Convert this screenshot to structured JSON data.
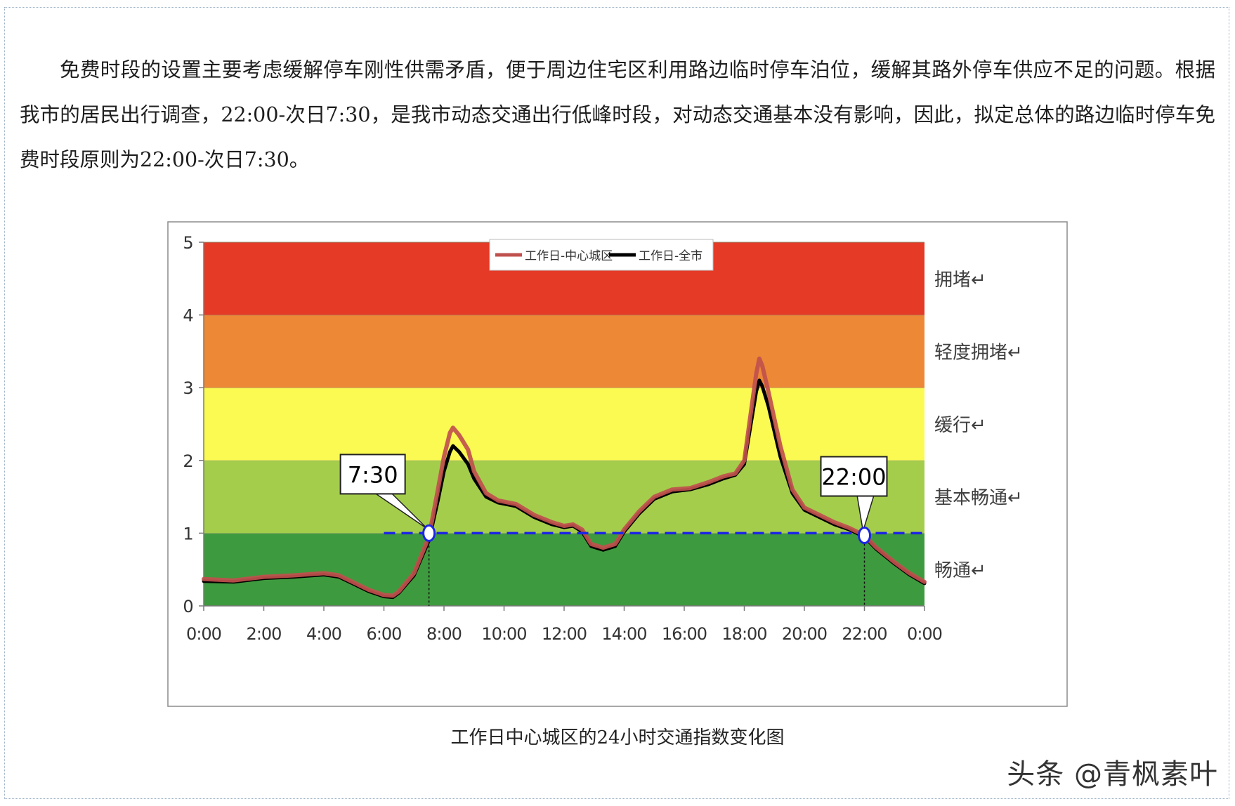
{
  "article": {
    "paragraph": "免费时段的设置主要考虑缓解停车刚性供需矛盾，便于周边住宅区利用路边临时停车泊位，缓解其路外停车供应不足的问题。根据我市的居民出行调查，22:00-次日7:30，是我市动态交通出行低峰时段，对动态交通基本没有影响，因此，拟定总体的路边临时停车免费时段原则为22:00-次日7:30。",
    "caption": "工作日中心城区的24小时交通指数变化图",
    "watermark": "头条 @青枫素叶"
  },
  "chart_data": {
    "type": "line",
    "title": "",
    "xlabel": "",
    "ylabel": "",
    "xlim": [
      0,
      24
    ],
    "ylim": [
      0,
      5
    ],
    "x_ticks": [
      "0:00",
      "2:00",
      "4:00",
      "6:00",
      "8:00",
      "10:00",
      "12:00",
      "14:00",
      "16:00",
      "18:00",
      "20:00",
      "22:00",
      "0:00"
    ],
    "y_ticks": [
      "0",
      "1",
      "2",
      "3",
      "4",
      "5"
    ],
    "legend_position": "top",
    "bands": [
      {
        "label": "畅通",
        "from": 0,
        "to": 1,
        "color": "#3e9a3e"
      },
      {
        "label": "基本畅通",
        "from": 1,
        "to": 2,
        "color": "#a4cd4c"
      },
      {
        "label": "缓行",
        "from": 2,
        "to": 3,
        "color": "#fafa52"
      },
      {
        "label": "轻度拥堵",
        "from": 3,
        "to": 4,
        "color": "#ed8836"
      },
      {
        "label": "拥堵",
        "from": 4,
        "to": 5,
        "color": "#e53a26"
      }
    ],
    "band_label_suffix": "↵",
    "reference_line": {
      "y": 1,
      "from": 6,
      "to": 24,
      "color": "#1c25e6"
    },
    "series": [
      {
        "name": "工作日-中心城区",
        "color": "#c0504d",
        "points": [
          [
            0,
            0.37
          ],
          [
            1,
            0.35
          ],
          [
            2,
            0.4
          ],
          [
            3,
            0.42
          ],
          [
            4,
            0.45
          ],
          [
            4.5,
            0.42
          ],
          [
            5,
            0.32
          ],
          [
            5.5,
            0.22
          ],
          [
            6,
            0.15
          ],
          [
            6.3,
            0.14
          ],
          [
            6.5,
            0.2
          ],
          [
            7,
            0.45
          ],
          [
            7.5,
            0.95
          ],
          [
            7.8,
            1.6
          ],
          [
            8,
            2.05
          ],
          [
            8.2,
            2.38
          ],
          [
            8.3,
            2.45
          ],
          [
            8.5,
            2.35
          ],
          [
            8.8,
            2.15
          ],
          [
            9,
            1.85
          ],
          [
            9.4,
            1.55
          ],
          [
            9.8,
            1.45
          ],
          [
            10.4,
            1.4
          ],
          [
            11,
            1.25
          ],
          [
            11.6,
            1.15
          ],
          [
            12,
            1.1
          ],
          [
            12.3,
            1.12
          ],
          [
            12.6,
            1.05
          ],
          [
            12.9,
            0.85
          ],
          [
            13.3,
            0.8
          ],
          [
            13.7,
            0.85
          ],
          [
            14,
            1.05
          ],
          [
            14.5,
            1.3
          ],
          [
            15,
            1.5
          ],
          [
            15.6,
            1.6
          ],
          [
            16.2,
            1.62
          ],
          [
            16.8,
            1.7
          ],
          [
            17.3,
            1.78
          ],
          [
            17.7,
            1.82
          ],
          [
            18,
            2.0
          ],
          [
            18.2,
            2.6
          ],
          [
            18.4,
            3.2
          ],
          [
            18.5,
            3.4
          ],
          [
            18.6,
            3.3
          ],
          [
            18.8,
            2.95
          ],
          [
            19.2,
            2.2
          ],
          [
            19.6,
            1.6
          ],
          [
            20,
            1.35
          ],
          [
            20.5,
            1.25
          ],
          [
            21,
            1.15
          ],
          [
            21.5,
            1.07
          ],
          [
            22,
            0.97
          ],
          [
            22.4,
            0.8
          ],
          [
            23,
            0.6
          ],
          [
            23.5,
            0.45
          ],
          [
            24,
            0.33
          ]
        ]
      },
      {
        "name": "工作日-全市",
        "color": "#000000",
        "points": [
          [
            0,
            0.34
          ],
          [
            1,
            0.33
          ],
          [
            2,
            0.38
          ],
          [
            3,
            0.4
          ],
          [
            4,
            0.43
          ],
          [
            4.5,
            0.4
          ],
          [
            5,
            0.3
          ],
          [
            5.5,
            0.2
          ],
          [
            6,
            0.13
          ],
          [
            6.3,
            0.12
          ],
          [
            6.5,
            0.18
          ],
          [
            7,
            0.42
          ],
          [
            7.5,
            0.9
          ],
          [
            7.8,
            1.45
          ],
          [
            8,
            1.85
          ],
          [
            8.2,
            2.12
          ],
          [
            8.3,
            2.2
          ],
          [
            8.5,
            2.12
          ],
          [
            8.8,
            1.95
          ],
          [
            9,
            1.75
          ],
          [
            9.4,
            1.5
          ],
          [
            9.8,
            1.42
          ],
          [
            10.4,
            1.37
          ],
          [
            11,
            1.22
          ],
          [
            11.6,
            1.12
          ],
          [
            12,
            1.08
          ],
          [
            12.3,
            1.1
          ],
          [
            12.6,
            1.02
          ],
          [
            12.9,
            0.82
          ],
          [
            13.3,
            0.77
          ],
          [
            13.7,
            0.82
          ],
          [
            14,
            1.02
          ],
          [
            14.5,
            1.27
          ],
          [
            15,
            1.47
          ],
          [
            15.6,
            1.57
          ],
          [
            16.2,
            1.6
          ],
          [
            16.8,
            1.67
          ],
          [
            17.3,
            1.75
          ],
          [
            17.7,
            1.8
          ],
          [
            18,
            1.95
          ],
          [
            18.2,
            2.45
          ],
          [
            18.4,
            2.95
          ],
          [
            18.5,
            3.1
          ],
          [
            18.6,
            3.02
          ],
          [
            18.8,
            2.75
          ],
          [
            19.2,
            2.05
          ],
          [
            19.6,
            1.55
          ],
          [
            20,
            1.32
          ],
          [
            20.5,
            1.22
          ],
          [
            21,
            1.12
          ],
          [
            21.5,
            1.05
          ],
          [
            22,
            0.95
          ],
          [
            22.4,
            0.78
          ],
          [
            23,
            0.58
          ],
          [
            23.5,
            0.43
          ],
          [
            24,
            0.31
          ]
        ]
      }
    ],
    "annotations": [
      {
        "label": "7:30",
        "x": 7.5,
        "y": 1.0
      },
      {
        "label": "22:00",
        "x": 22.0,
        "y": 0.97
      }
    ]
  }
}
